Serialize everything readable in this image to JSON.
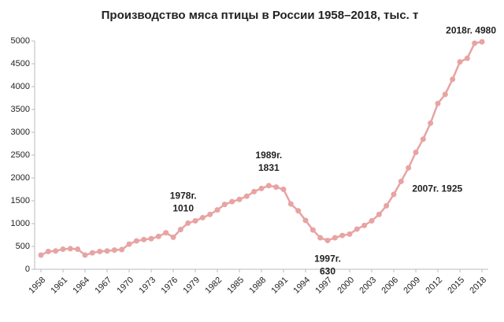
{
  "chart_data": {
    "type": "line",
    "title": "Производство мяса птицы в России 1958–2018, тыс. т",
    "x": [
      1958,
      1959,
      1960,
      1961,
      1962,
      1963,
      1964,
      1965,
      1966,
      1967,
      1968,
      1969,
      1970,
      1971,
      1972,
      1973,
      1974,
      1975,
      1976,
      1977,
      1978,
      1979,
      1980,
      1981,
      1982,
      1983,
      1984,
      1985,
      1986,
      1987,
      1988,
      1989,
      1990,
      1991,
      1992,
      1993,
      1994,
      1995,
      1996,
      1997,
      1998,
      1999,
      2000,
      2001,
      2002,
      2003,
      2004,
      2005,
      2006,
      2007,
      2008,
      2009,
      2010,
      2011,
      2012,
      2013,
      2014,
      2015,
      2016,
      2017,
      2018
    ],
    "series": [
      {
        "color": "#e8a3a3",
        "values": [
          310,
          390,
          400,
          440,
          450,
          440,
          310,
          360,
          390,
          400,
          420,
          430,
          550,
          620,
          650,
          670,
          720,
          800,
          700,
          870,
          1010,
          1060,
          1130,
          1200,
          1300,
          1420,
          1480,
          1530,
          1600,
          1700,
          1770,
          1831,
          1800,
          1750,
          1430,
          1280,
          1070,
          860,
          690,
          630,
          690,
          740,
          770,
          880,
          960,
          1060,
          1200,
          1390,
          1640,
          1925,
          2220,
          2560,
          2850,
          3200,
          3630,
          3830,
          4160,
          4540,
          4620,
          4950,
          4980
        ]
      }
    ],
    "xlim": [
      1958,
      2018
    ],
    "xticks": [
      1958,
      1961,
      1964,
      1967,
      1970,
      1973,
      1976,
      1979,
      1982,
      1985,
      1988,
      1991,
      1994,
      1997,
      2000,
      2003,
      2006,
      2009,
      2012,
      2015,
      2018
    ],
    "ylim": [
      0,
      5000
    ],
    "yticks": [
      0,
      500,
      1000,
      1500,
      2000,
      2500,
      3000,
      3500,
      4000,
      4500,
      5000
    ],
    "grid": false,
    "annotations": [
      {
        "x": 1978,
        "y": 1010,
        "label": [
          "1978г.",
          "1010"
        ]
      },
      {
        "x": 1989,
        "y": 1831,
        "label": [
          "1989г.",
          "1831"
        ]
      },
      {
        "x": 1997,
        "y": 630,
        "label": [
          "1997г.",
          "630"
        ]
      },
      {
        "x": 2007,
        "y": 1925,
        "label": [
          "2007г. 1925"
        ]
      },
      {
        "x": 2018,
        "y": 4980,
        "label": [
          "2018г. 4980"
        ]
      }
    ]
  }
}
